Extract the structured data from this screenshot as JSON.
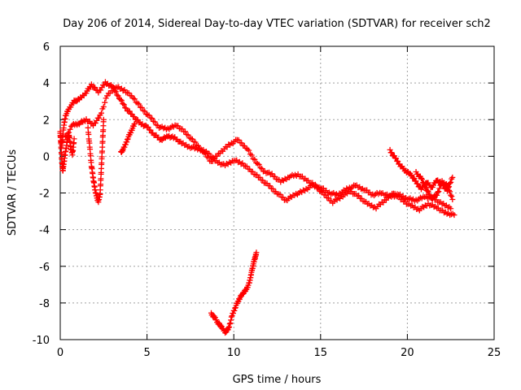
{
  "chart_data": {
    "type": "scatter",
    "title": "Day 206 of 2014, Sidereal Day-to-day VTEC variation (SDTVAR) for receiver sch2",
    "xlabel": "GPS time / hours",
    "ylabel": "SDTVAR / TECUs",
    "xlim": [
      0,
      25
    ],
    "ylim": [
      -10,
      6
    ],
    "x_ticks": [
      0,
      5,
      10,
      15,
      20,
      25
    ],
    "y_ticks": [
      -10,
      -8,
      -6,
      -4,
      -2,
      0,
      2,
      4,
      6
    ],
    "grid": true,
    "marker": "+",
    "color": "#ff0000",
    "series": [
      {
        "name": "SDTVAR main arc",
        "points": [
          [
            0.0,
            1.2
          ],
          [
            0.1,
            0.6
          ],
          [
            0.2,
            1.6
          ],
          [
            0.3,
            2.2
          ],
          [
            0.5,
            2.6
          ],
          [
            0.8,
            3.0
          ],
          [
            1.1,
            3.1
          ],
          [
            1.5,
            3.5
          ],
          [
            1.8,
            3.9
          ],
          [
            2.2,
            3.5
          ],
          [
            2.6,
            4.0
          ],
          [
            3.0,
            3.8
          ],
          [
            3.4,
            3.2
          ],
          [
            3.8,
            2.6
          ],
          [
            4.2,
            2.2
          ],
          [
            4.6,
            1.8
          ],
          [
            5.0,
            1.6
          ],
          [
            5.4,
            1.2
          ],
          [
            5.8,
            0.9
          ],
          [
            6.2,
            1.1
          ],
          [
            6.6,
            1.0
          ],
          [
            7.0,
            0.7
          ],
          [
            7.5,
            0.5
          ],
          [
            8.0,
            0.4
          ],
          [
            8.5,
            0.2
          ],
          [
            9.0,
            -0.3
          ],
          [
            9.5,
            -0.5
          ],
          [
            10.0,
            -0.2
          ],
          [
            10.5,
            -0.4
          ],
          [
            11.0,
            -0.8
          ],
          [
            11.5,
            -1.2
          ],
          [
            12.0,
            -1.6
          ],
          [
            12.5,
            -2.0
          ],
          [
            13.0,
            -2.4
          ],
          [
            13.5,
            -2.1
          ],
          [
            14.0,
            -1.9
          ],
          [
            14.5,
            -1.6
          ],
          [
            15.0,
            -1.7
          ],
          [
            15.5,
            -2.0
          ],
          [
            16.0,
            -2.1
          ],
          [
            16.5,
            -1.8
          ],
          [
            17.0,
            -1.6
          ],
          [
            17.5,
            -1.8
          ],
          [
            18.0,
            -2.1
          ],
          [
            18.5,
            -2.0
          ],
          [
            19.0,
            -2.2
          ],
          [
            19.5,
            -2.1
          ],
          [
            20.0,
            -2.3
          ],
          [
            20.5,
            -2.4
          ],
          [
            21.0,
            -2.2
          ],
          [
            21.5,
            -2.3
          ],
          [
            22.0,
            -2.6
          ],
          [
            22.5,
            -2.8
          ]
        ]
      },
      {
        "name": "SDTVAR upper branch",
        "points": [
          [
            0.3,
            1.0
          ],
          [
            0.7,
            1.7
          ],
          [
            1.1,
            1.8
          ],
          [
            1.5,
            2.0
          ],
          [
            1.9,
            1.7
          ],
          [
            2.3,
            2.2
          ],
          [
            2.7,
            3.3
          ],
          [
            3.2,
            3.8
          ],
          [
            3.7,
            3.6
          ],
          [
            4.2,
            3.2
          ],
          [
            4.7,
            2.6
          ],
          [
            5.2,
            2.1
          ],
          [
            5.7,
            1.6
          ],
          [
            6.2,
            1.5
          ],
          [
            6.7,
            1.7
          ],
          [
            7.2,
            1.3
          ],
          [
            7.7,
            0.8
          ],
          [
            8.2,
            0.3
          ],
          [
            8.7,
            -0.3
          ],
          [
            9.2,
            0.2
          ],
          [
            9.7,
            0.6
          ],
          [
            10.2,
            0.9
          ],
          [
            10.7,
            0.5
          ],
          [
            11.2,
            -0.2
          ],
          [
            11.7,
            -0.8
          ],
          [
            12.2,
            -1.0
          ],
          [
            12.7,
            -1.4
          ],
          [
            13.2,
            -1.1
          ],
          [
            13.7,
            -1.0
          ],
          [
            14.2,
            -1.3
          ],
          [
            14.7,
            -1.6
          ],
          [
            15.2,
            -2.1
          ],
          [
            15.7,
            -2.5
          ],
          [
            16.2,
            -2.2
          ],
          [
            16.7,
            -1.9
          ],
          [
            17.2,
            -2.2
          ],
          [
            17.7,
            -2.6
          ],
          [
            18.2,
            -2.8
          ],
          [
            18.7,
            -2.4
          ],
          [
            19.2,
            -2.0
          ],
          [
            19.7,
            -2.4
          ],
          [
            20.2,
            -2.7
          ],
          [
            20.7,
            -2.9
          ],
          [
            21.2,
            -2.6
          ],
          [
            21.7,
            -2.8
          ],
          [
            22.2,
            -3.1
          ],
          [
            22.7,
            -3.2
          ]
        ]
      },
      {
        "name": "SDTVAR dip near 2h",
        "points": [
          [
            1.6,
            1.5
          ],
          [
            1.7,
            0.5
          ],
          [
            1.8,
            -0.5
          ],
          [
            1.9,
            -1.2
          ],
          [
            2.0,
            -1.8
          ],
          [
            2.1,
            -2.2
          ],
          [
            2.2,
            -2.5
          ],
          [
            2.3,
            -2.0
          ],
          [
            2.35,
            -1.0
          ],
          [
            2.4,
            0.0
          ],
          [
            2.45,
            1.0
          ],
          [
            2.5,
            2.0
          ]
        ]
      },
      {
        "name": "SDTVAR early dip",
        "points": [
          [
            0.0,
            1.3
          ],
          [
            0.05,
            0.5
          ],
          [
            0.1,
            -0.3
          ],
          [
            0.15,
            -0.8
          ],
          [
            0.2,
            -0.4
          ],
          [
            0.3,
            0.2
          ],
          [
            0.4,
            0.8
          ],
          [
            0.5,
            1.2
          ],
          [
            0.6,
            0.5
          ],
          [
            0.7,
            0.1
          ],
          [
            0.8,
            0.9
          ]
        ]
      },
      {
        "name": "SDTVAR rise near 3.5h",
        "points": [
          [
            3.5,
            0.2
          ],
          [
            3.7,
            0.5
          ],
          [
            3.9,
            1.0
          ],
          [
            4.1,
            1.4
          ],
          [
            4.3,
            1.8
          ]
        ]
      },
      {
        "name": "SDTVAR isolated arc",
        "points": [
          [
            8.7,
            -8.6
          ],
          [
            8.9,
            -8.8
          ],
          [
            9.1,
            -9.1
          ],
          [
            9.3,
            -9.3
          ],
          [
            9.5,
            -9.6
          ],
          [
            9.7,
            -9.4
          ],
          [
            9.9,
            -8.7
          ],
          [
            10.1,
            -8.2
          ],
          [
            10.3,
            -7.8
          ],
          [
            10.5,
            -7.5
          ],
          [
            10.7,
            -7.3
          ],
          [
            10.9,
            -6.9
          ],
          [
            11.0,
            -6.4
          ],
          [
            11.1,
            -6.0
          ],
          [
            11.2,
            -5.6
          ],
          [
            11.3,
            -5.3
          ]
        ]
      },
      {
        "name": "SDTVAR late arc",
        "points": [
          [
            19.0,
            0.3
          ],
          [
            19.3,
            -0.1
          ],
          [
            19.6,
            -0.5
          ],
          [
            19.9,
            -0.8
          ],
          [
            20.2,
            -1.0
          ],
          [
            20.5,
            -1.4
          ],
          [
            20.8,
            -1.8
          ],
          [
            21.1,
            -1.4
          ],
          [
            21.4,
            -1.7
          ],
          [
            21.7,
            -1.3
          ],
          [
            22.0,
            -1.5
          ],
          [
            22.3,
            -1.9
          ],
          [
            22.6,
            -1.1
          ]
        ]
      },
      {
        "name": "SDTVAR late arc 2",
        "points": [
          [
            20.5,
            -0.9
          ],
          [
            20.8,
            -1.2
          ],
          [
            21.1,
            -1.8
          ],
          [
            21.4,
            -2.3
          ],
          [
            21.7,
            -2.1
          ],
          [
            22.0,
            -1.4
          ],
          [
            22.3,
            -1.6
          ],
          [
            22.6,
            -2.3
          ]
        ]
      }
    ]
  }
}
